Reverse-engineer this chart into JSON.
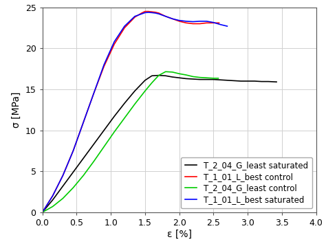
{
  "xlabel": "ε [%]",
  "ylabel_top": "σ [MPa]",
  "xlim": [
    0.0,
    4.0
  ],
  "ylim": [
    0,
    25
  ],
  "xticks": [
    0.0,
    0.5,
    1.0,
    1.5,
    2.0,
    2.5,
    3.0,
    3.5,
    4.0
  ],
  "yticks": [
    0,
    5,
    10,
    15,
    20,
    25
  ],
  "curves": {
    "black": {
      "label": "T_2_04_G_least saturated",
      "color": "#000000",
      "x": [
        0.0,
        0.15,
        0.3,
        0.45,
        0.6,
        0.75,
        0.9,
        1.05,
        1.2,
        1.35,
        1.5,
        1.6,
        1.7,
        1.8,
        1.9,
        2.0,
        2.1,
        2.2,
        2.3,
        2.4,
        2.5,
        2.6,
        2.7,
        2.8,
        2.9,
        3.0,
        3.1,
        3.2,
        3.3,
        3.42
      ],
      "y": [
        0.0,
        1.5,
        3.2,
        4.9,
        6.6,
        8.3,
        10.0,
        11.7,
        13.3,
        14.8,
        16.1,
        16.65,
        16.7,
        16.65,
        16.5,
        16.4,
        16.3,
        16.25,
        16.2,
        16.2,
        16.2,
        16.15,
        16.1,
        16.05,
        16.0,
        16.0,
        16.0,
        15.95,
        15.95,
        15.9
      ]
    },
    "red": {
      "label": "T_1_01_L_best control",
      "color": "#ff0000",
      "x": [
        0.0,
        0.15,
        0.3,
        0.45,
        0.6,
        0.75,
        0.9,
        1.05,
        1.2,
        1.35,
        1.45,
        1.5,
        1.55,
        1.6,
        1.65,
        1.7,
        1.8,
        1.9,
        2.0,
        2.1,
        2.2,
        2.3,
        2.4,
        2.5,
        2.55,
        2.58
      ],
      "y": [
        0.0,
        2.0,
        4.5,
        7.5,
        11.0,
        14.5,
        17.8,
        20.5,
        22.5,
        23.8,
        24.3,
        24.5,
        24.5,
        24.45,
        24.4,
        24.3,
        23.9,
        23.6,
        23.3,
        23.1,
        23.0,
        23.0,
        23.1,
        23.1,
        23.1,
        23.1
      ]
    },
    "green": {
      "label": "T_2_04_G_least control",
      "color": "#00cc00",
      "x": [
        0.0,
        0.15,
        0.3,
        0.45,
        0.6,
        0.75,
        0.9,
        1.05,
        1.2,
        1.35,
        1.5,
        1.6,
        1.7,
        1.8,
        1.9,
        2.0,
        2.1,
        2.2,
        2.3,
        2.4,
        2.5,
        2.55,
        2.57
      ],
      "y": [
        0.0,
        0.7,
        1.7,
        3.0,
        4.5,
        6.2,
        8.0,
        9.8,
        11.5,
        13.2,
        14.8,
        15.8,
        16.7,
        17.15,
        17.1,
        16.9,
        16.75,
        16.55,
        16.45,
        16.4,
        16.35,
        16.35,
        16.35
      ]
    },
    "blue": {
      "label": "T_1_01_L_best saturated",
      "color": "#0000ff",
      "x": [
        0.0,
        0.15,
        0.3,
        0.45,
        0.6,
        0.75,
        0.9,
        1.05,
        1.2,
        1.35,
        1.45,
        1.5,
        1.55,
        1.6,
        1.65,
        1.7,
        1.8,
        1.9,
        2.0,
        2.1,
        2.2,
        2.3,
        2.4,
        2.5,
        2.6,
        2.65,
        2.7
      ],
      "y": [
        0.0,
        2.0,
        4.5,
        7.5,
        11.0,
        14.5,
        18.0,
        20.8,
        22.7,
        23.9,
        24.2,
        24.35,
        24.38,
        24.35,
        24.3,
        24.2,
        23.9,
        23.6,
        23.4,
        23.3,
        23.25,
        23.3,
        23.3,
        23.15,
        22.9,
        22.8,
        22.7
      ]
    }
  },
  "legend_loc": "lower right",
  "grid_color": "#d0d0d0",
  "background_color": "#ffffff",
  "label_fontsize": 10,
  "tick_fontsize": 9,
  "legend_fontsize": 8.5,
  "linewidth": 1.2
}
